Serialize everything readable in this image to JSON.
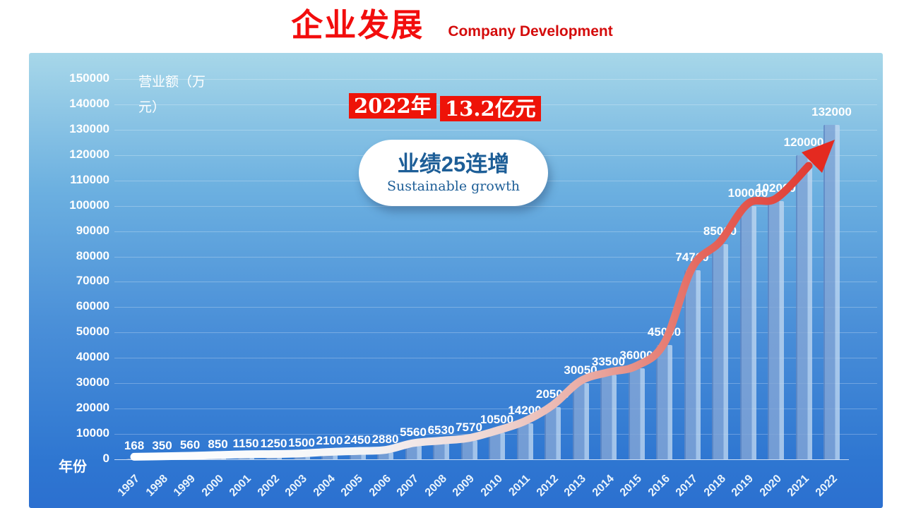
{
  "header": {
    "title": "企业发展",
    "subtitle": "Company Development"
  },
  "overlays": {
    "badge_year": "2022年",
    "badge_value": "13.2亿元",
    "bubble_title": "业绩25连增",
    "bubble_subtitle": "Sustainable growth"
  },
  "chart_data": {
    "type": "bar",
    "title": "企业发展 Company Development",
    "xlabel": "年份",
    "ylabel": "营业额（万元）",
    "categories": [
      "1997",
      "1998",
      "1999",
      "2000",
      "2001",
      "2002",
      "2003",
      "2004",
      "2005",
      "2006",
      "2007",
      "2008",
      "2009",
      "2010",
      "2011",
      "2012",
      "2013",
      "2014",
      "2015",
      "2016",
      "2017",
      "2018",
      "2019",
      "2020",
      "2021",
      "2022"
    ],
    "values": [
      168,
      350,
      560,
      850,
      1150,
      1250,
      1500,
      2100,
      2450,
      2880,
      5560,
      6530,
      7570,
      10500,
      14200,
      20500,
      30050,
      33500,
      36000,
      45000,
      74700,
      85000,
      100000,
      102000,
      120000,
      132000
    ],
    "ylim": [
      0,
      150000
    ],
    "ytick_step": 10000,
    "grid": true,
    "legend": false,
    "annotations": [
      "2022年 13.2亿元",
      "业绩25连增 Sustainable growth",
      "growth trend arrow from white (1997) to red (2022)"
    ]
  },
  "colors": {
    "title_red": "#f20d0d",
    "subtitle_red": "#d40c0c",
    "badge_bg": "#ee1308",
    "badge_text": "#ffffff",
    "bubble_bg": "#ffffff",
    "bubble_text": "#1d5e97",
    "panel_top": "#a7d7e9",
    "panel_mid": "#4a8fd8",
    "panel_bottom": "#2c70d0",
    "bar_fill": "rgba(132,166,214,0.80)",
    "bar_edge": "rgba(190,214,240,0.80)",
    "axis_text": "#ffffff",
    "line_start": "#ffffff",
    "line_end": "#e0332b",
    "arrow_red": "#e42a20"
  }
}
